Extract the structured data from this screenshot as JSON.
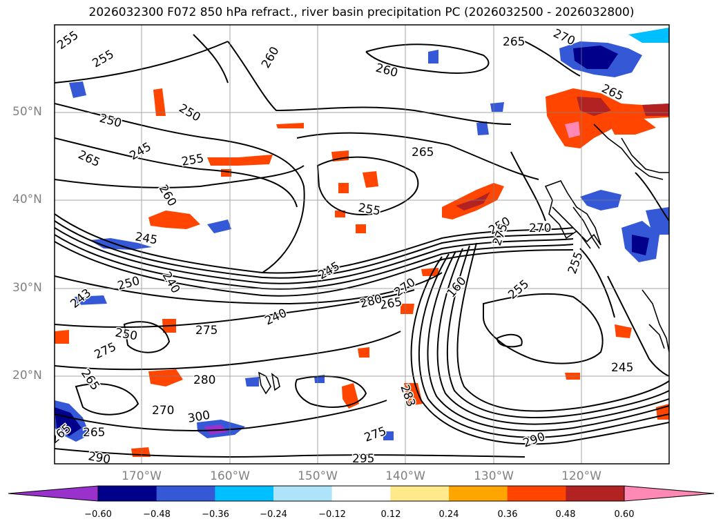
{
  "title": "2026032300 F072 850 hPa refract., river basin precipitation PC (2026032500 - 2026032800)",
  "map": {
    "lat_labels": [
      "50°N",
      "40°N",
      "30°N",
      "20°N"
    ],
    "lon_labels": [
      "170°W",
      "160°W",
      "150°W",
      "140°W",
      "130°W",
      "120°W"
    ],
    "contour_labels": [
      "255",
      "255",
      "250",
      "250",
      "260",
      "265",
      "270",
      "265",
      "260",
      "265",
      "245",
      "265",
      "255",
      "260",
      "245",
      "255",
      "250",
      "270",
      "275",
      "255",
      "250",
      "240",
      "243",
      "245",
      "265",
      "270",
      "160",
      "255",
      "280",
      "275",
      "250",
      "240",
      "275",
      "265",
      "280",
      "270",
      "265",
      "290",
      "300",
      "275",
      "295",
      "283",
      "245",
      "290",
      "265"
    ]
  },
  "colorbar": {
    "ticks": [
      "−0.60",
      "−0.48",
      "−0.36",
      "−0.24",
      "−0.12",
      "0.12",
      "0.24",
      "0.36",
      "0.48",
      "0.60"
    ],
    "colors": [
      "#9932cc",
      "#00008b",
      "#3458d6",
      "#00bfff",
      "#aee4fa",
      "#ffffff",
      "#ffe98a",
      "#ffa500",
      "#ff4500",
      "#b22222",
      "#ff89b4"
    ]
  }
}
